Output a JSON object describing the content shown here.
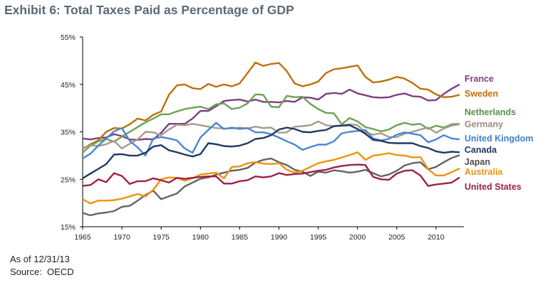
{
  "title": "Exhibit 6: Total Taxes Paid as Percentage of GDP",
  "notes": {
    "as_of": "As of 12/31/13",
    "source": "Source:  OECD"
  },
  "chart_data": {
    "type": "line",
    "title": "Exhibit 6: Total Taxes Paid as Percentage of GDP",
    "xlabel": "",
    "ylabel": "",
    "xlim": [
      1965,
      2013.5
    ],
    "ylim": [
      15,
      55
    ],
    "x_ticks": [
      1965,
      1970,
      1975,
      1980,
      1985,
      1990,
      1995,
      2000,
      2005,
      2010
    ],
    "y_ticks": [
      15,
      25,
      35,
      45,
      55
    ],
    "y_tick_labels": [
      "15%",
      "25%",
      "35%",
      "45%",
      "55%"
    ],
    "grid": false,
    "legend_position": "right (end-of-line labels)",
    "x": [
      1965,
      1966,
      1967,
      1968,
      1969,
      1970,
      1971,
      1972,
      1973,
      1974,
      1975,
      1976,
      1977,
      1978,
      1979,
      1980,
      1981,
      1982,
      1983,
      1984,
      1985,
      1986,
      1987,
      1988,
      1989,
      1990,
      1991,
      1992,
      1993,
      1994,
      1995,
      1996,
      1997,
      1998,
      1999,
      2000,
      2001,
      2002,
      2003,
      2004,
      2005,
      2006,
      2007,
      2008,
      2009,
      2010,
      2011,
      2012,
      2013
    ],
    "series": [
      {
        "name": "France",
        "color": "#7e3f7f",
        "values": [
          33.6,
          33.4,
          33.7,
          33.8,
          34.5,
          34.1,
          33.4,
          33.3,
          33.5,
          33.4,
          34.8,
          36.7,
          36.7,
          36.7,
          37.8,
          39.4,
          39.4,
          40.4,
          41.5,
          41.7,
          41.8,
          41.4,
          41.8,
          41.3,
          41.3,
          41.2,
          41.5,
          41.3,
          42.3,
          42.2,
          41.8,
          43.0,
          43.2,
          43.0,
          43.9,
          43.1,
          42.7,
          42.3,
          42.2,
          42.3,
          42.8,
          43.1,
          42.5,
          42.4,
          41.6,
          41.7,
          43.0,
          44.1,
          45.0
        ]
      },
      {
        "name": "Sweden",
        "color": "#bf6f0a",
        "values": [
          31.4,
          32.4,
          33.2,
          35.0,
          35.8,
          35.7,
          36.6,
          37.8,
          37.4,
          38.6,
          39.3,
          42.8,
          44.8,
          45.0,
          44.2,
          44.0,
          45.1,
          44.5,
          45.0,
          44.6,
          45.2,
          47.4,
          49.6,
          48.9,
          49.3,
          49.5,
          47.8,
          45.2,
          44.6,
          45.0,
          45.6,
          47.4,
          48.2,
          48.4,
          48.7,
          49.0,
          46.6,
          45.4,
          45.6,
          46.0,
          46.6,
          46.2,
          45.3,
          44.1,
          43.9,
          42.9,
          42.3,
          42.4,
          42.8
        ]
      },
      {
        "name": "Netherlands",
        "color": "#6aa357",
        "values": [
          30.6,
          32.1,
          33.0,
          33.5,
          32.9,
          34.0,
          35.0,
          36.0,
          37.0,
          37.8,
          38.7,
          38.7,
          39.3,
          39.8,
          40.1,
          40.3,
          39.8,
          40.8,
          41.0,
          39.8,
          40.1,
          41.0,
          42.9,
          42.8,
          40.3,
          40.2,
          42.6,
          42.3,
          42.4,
          40.9,
          39.8,
          39.0,
          38.9,
          36.6,
          37.9,
          37.2,
          36.0,
          35.6,
          35.1,
          35.5,
          36.4,
          36.9,
          36.5,
          36.7,
          35.6,
          36.3,
          35.9,
          36.6,
          36.7
        ]
      },
      {
        "name": "Germany",
        "color": "#a89a8c",
        "values": [
          31.6,
          32.2,
          32.0,
          32.4,
          33.1,
          31.5,
          32.5,
          33.4,
          35.0,
          34.9,
          34.3,
          35.5,
          36.5,
          36.4,
          36.7,
          36.4,
          36.1,
          35.8,
          35.7,
          35.7,
          35.9,
          35.7,
          36.1,
          35.8,
          35.9,
          34.8,
          34.9,
          36.1,
          36.2,
          36.4,
          37.2,
          36.4,
          36.2,
          36.4,
          36.6,
          36.4,
          34.9,
          34.4,
          34.7,
          33.9,
          33.9,
          34.6,
          35.0,
          35.5,
          35.9,
          34.8,
          35.7,
          36.3,
          36.6
        ]
      },
      {
        "name": "United Kingdom",
        "color": "#4a86d0",
        "values": [
          29.4,
          30.4,
          32.1,
          33.6,
          35.1,
          35.8,
          33.1,
          31.7,
          30.0,
          33.6,
          33.9,
          33.6,
          33.2,
          31.5,
          30.6,
          33.8,
          35.4,
          36.9,
          35.6,
          35.9,
          35.6,
          35.8,
          34.9,
          34.9,
          34.5,
          33.8,
          33.0,
          32.3,
          31.2,
          31.8,
          32.3,
          32.3,
          33.0,
          34.7,
          35.0,
          35.2,
          35.4,
          33.6,
          33.2,
          33.5,
          34.4,
          34.9,
          34.6,
          34.3,
          32.8,
          33.4,
          34.3,
          33.6,
          33.4
        ]
      },
      {
        "name": "Canada",
        "color": "#1f3a64",
        "values": [
          25.2,
          26.2,
          27.2,
          28.2,
          30.2,
          30.3,
          30.0,
          30.0,
          30.6,
          31.9,
          32.2,
          31.1,
          30.7,
          30.2,
          29.8,
          30.3,
          32.6,
          32.4,
          32.0,
          31.9,
          32.1,
          32.6,
          33.5,
          33.7,
          34.3,
          35.5,
          35.9,
          35.6,
          35.0,
          34.9,
          35.2,
          35.4,
          36.2,
          36.3,
          36.4,
          35.6,
          34.6,
          33.3,
          33.1,
          32.7,
          32.6,
          32.6,
          32.6,
          32.0,
          31.6,
          30.9,
          30.6,
          30.8,
          30.7
        ]
      },
      {
        "name": "Japan",
        "color": "#636363",
        "values": [
          17.9,
          17.4,
          17.8,
          18.0,
          18.3,
          19.2,
          19.4,
          20.5,
          21.7,
          22.6,
          20.8,
          21.4,
          22.0,
          23.5,
          24.3,
          25.1,
          25.4,
          26.0,
          26.4,
          26.8,
          27.0,
          27.4,
          28.5,
          29.1,
          29.4,
          28.6,
          28.0,
          27.0,
          26.6,
          25.7,
          26.6,
          26.4,
          26.9,
          26.7,
          26.4,
          26.6,
          27.0,
          26.3,
          25.6,
          26.0,
          26.8,
          27.9,
          28.4,
          28.6,
          27.1,
          27.6,
          28.6,
          29.5,
          30.1
        ]
      },
      {
        "name": "Australia",
        "color": "#f0930e",
        "values": [
          20.8,
          19.9,
          20.5,
          20.5,
          20.6,
          20.9,
          21.4,
          21.9,
          21.4,
          22.8,
          25.0,
          25.4,
          25.3,
          24.7,
          25.2,
          26.0,
          26.2,
          26.4,
          25.2,
          27.6,
          27.7,
          28.4,
          28.6,
          28.3,
          28.2,
          28.4,
          27.0,
          26.4,
          26.8,
          27.6,
          28.4,
          28.8,
          29.1,
          29.6,
          30.1,
          30.7,
          29.1,
          30.0,
          30.2,
          30.5,
          30.1,
          30.0,
          29.6,
          29.7,
          27.1,
          25.8,
          25.8,
          26.5,
          27.3
        ]
      },
      {
        "name": "United States",
        "color": "#9c2340",
        "values": [
          23.6,
          23.8,
          25.0,
          24.4,
          26.3,
          25.7,
          24.0,
          24.6,
          24.6,
          25.2,
          24.8,
          24.3,
          25.3,
          25.1,
          25.3,
          25.5,
          25.6,
          25.6,
          24.1,
          24.1,
          24.6,
          24.8,
          25.6,
          25.4,
          25.6,
          26.3,
          25.9,
          26.1,
          26.2,
          26.5,
          26.8,
          27.0,
          27.5,
          27.8,
          28.0,
          28.1,
          28.0,
          25.5,
          25.0,
          24.9,
          26.2,
          26.8,
          26.9,
          25.8,
          23.6,
          23.9,
          24.1,
          24.3,
          25.4
        ]
      }
    ]
  },
  "legend": [
    {
      "label": "France",
      "color": "#7e3f7f"
    },
    {
      "label": "Sweden",
      "color": "#bf6f0a"
    },
    {
      "label": "Netherlands",
      "color": "#5a8f48"
    },
    {
      "label": "Germany",
      "color": "#9c8b7c"
    },
    {
      "label": "United Kingdom",
      "color": "#3f7fcf"
    },
    {
      "label": "Canada",
      "color": "#1f3a64"
    },
    {
      "label": "Japan",
      "color": "#4d4d4d"
    },
    {
      "label": "Australia",
      "color": "#f0930e"
    },
    {
      "label": "United States",
      "color": "#9c2340"
    }
  ]
}
